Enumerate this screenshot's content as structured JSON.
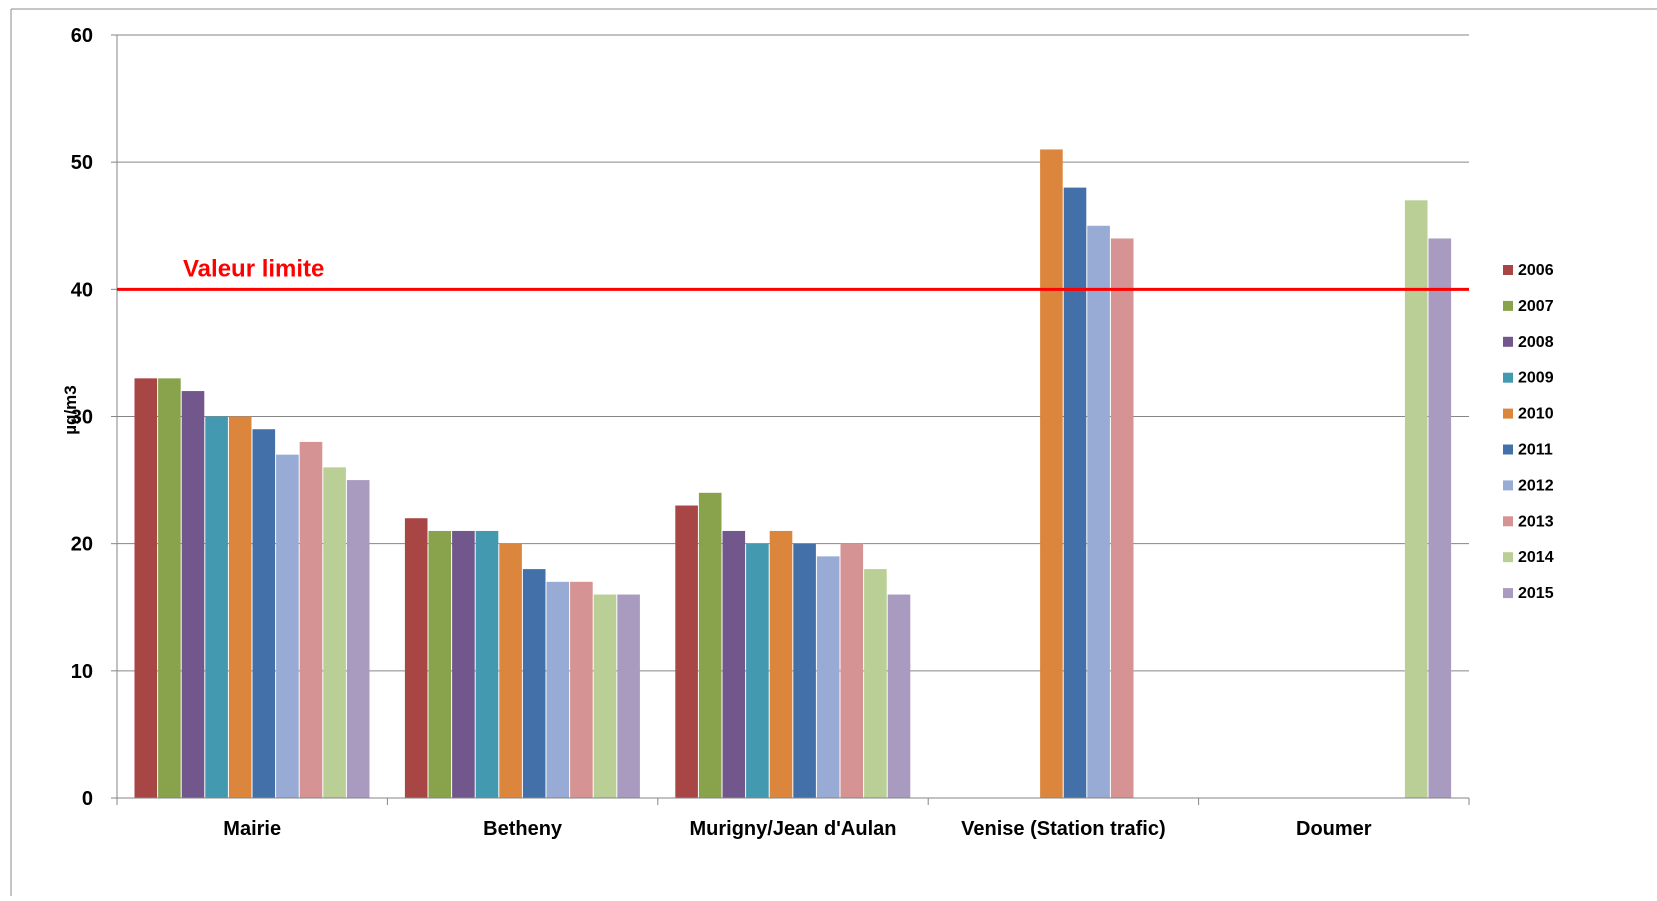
{
  "chart_data": {
    "type": "bar",
    "title": "",
    "xlabel": "",
    "ylabel": "µg/m3",
    "ylim": [
      0,
      60
    ],
    "yticks": [
      0,
      10,
      20,
      30,
      40,
      50,
      60
    ],
    "grid": true,
    "legend_position": "right",
    "categories": [
      "Mairie",
      "Betheny",
      "Murigny/Jean d'Aulan",
      "Venise (Station trafic)",
      "Doumer"
    ],
    "series": [
      {
        "name": "2006",
        "color": "#A84646",
        "values": [
          33,
          22,
          23,
          null,
          null
        ]
      },
      {
        "name": "2007",
        "color": "#89A34D",
        "values": [
          33,
          21,
          24,
          null,
          null
        ]
      },
      {
        "name": "2008",
        "color": "#71578C",
        "values": [
          32,
          21,
          21,
          null,
          null
        ]
      },
      {
        "name": "2009",
        "color": "#4299B0",
        "values": [
          30,
          21,
          20,
          null,
          null
        ]
      },
      {
        "name": "2010",
        "color": "#DC863D",
        "values": [
          30,
          20,
          21,
          51,
          null
        ]
      },
      {
        "name": "2011",
        "color": "#4470A9",
        "values": [
          29,
          18,
          20,
          48,
          null
        ]
      },
      {
        "name": "2012",
        "color": "#97ABD4",
        "values": [
          27,
          17,
          19,
          45,
          null
        ]
      },
      {
        "name": "2013",
        "color": "#D59393",
        "values": [
          28,
          17,
          20,
          44,
          null
        ]
      },
      {
        "name": "2014",
        "color": "#B9CF95",
        "values": [
          26,
          16,
          18,
          null,
          47
        ]
      },
      {
        "name": "2015",
        "color": "#A99BBF",
        "values": [
          25,
          16,
          16,
          null,
          44
        ]
      }
    ],
    "reference_line": {
      "label": "Valeur limite",
      "value": 40,
      "color": "#FF0000"
    }
  }
}
